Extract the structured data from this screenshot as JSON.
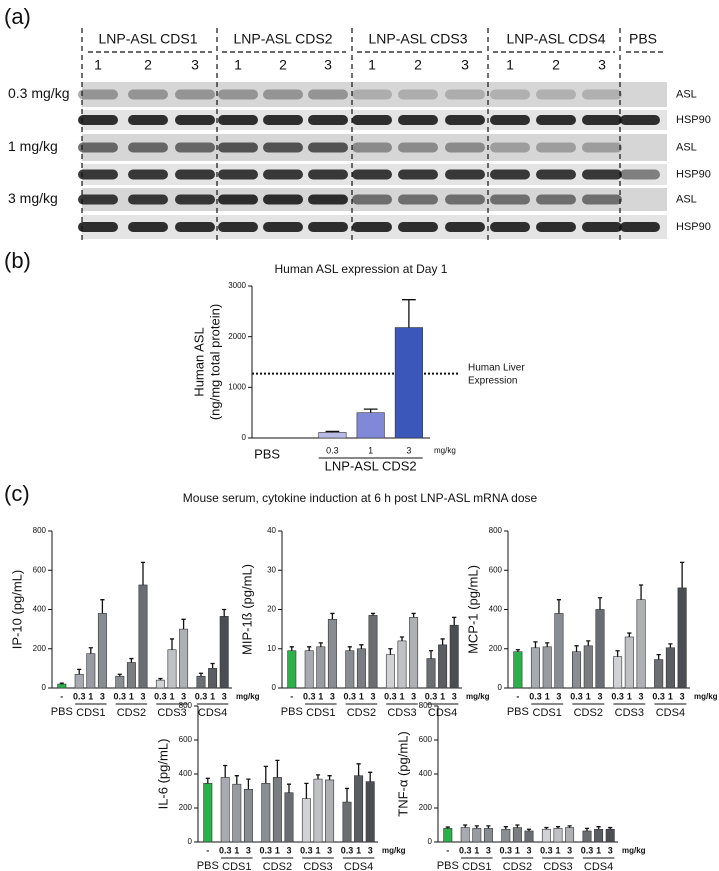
{
  "panel_labels": [
    "(a)",
    "(b)",
    "(c)"
  ],
  "blot": {
    "groups": [
      "LNP-ASL CDS1",
      "LNP-ASL CDS2",
      "LNP-ASL CDS3",
      "LNP-ASL CDS4",
      "PBS"
    ],
    "lanes": [
      "1",
      "2",
      "3"
    ],
    "doses": [
      "0.3 mg/kg",
      "1 mg/kg",
      "3 mg/kg"
    ],
    "markers": [
      "ASL",
      "HSP90"
    ]
  },
  "panel_c_title": "Mouse serum, cytokine induction at 6 h post LNP-ASL mRNA dose",
  "chart_data": [
    {
      "type": "bar",
      "title": "Human ASL expression at Day 1",
      "ylabel": [
        "Human ASL",
        "(ng/mg total protein)"
      ],
      "categories": [
        null,
        "0.3",
        "1",
        "3"
      ],
      "groups": [
        "PBS",
        "LNP-ASL CDS2"
      ],
      "unit": "mg/kg",
      "values": [
        0,
        110,
        500,
        2180
      ],
      "errors": [
        null,
        20,
        70,
        550
      ],
      "colors": [
        "#888888",
        "#b9b9e6",
        "#8088d8",
        "#3b57b9"
      ],
      "ref_line": {
        "value": 1270,
        "label": [
          "Human Liver",
          "Expression"
        ]
      },
      "ylim": [
        0,
        3000
      ],
      "yticks": [
        0,
        1000,
        2000,
        3000
      ]
    },
    {
      "type": "bar",
      "ylabel": "IP-10 (pg/mL)",
      "categories": [
        "-",
        "0.3",
        "1",
        "3",
        "0.3",
        "1",
        "3",
        "0.3",
        "1",
        "3",
        "0.3",
        "1",
        "3"
      ],
      "groups": [
        "PBS",
        "CDS1",
        "CDS2",
        "CDS3",
        "CDS4"
      ],
      "unit": "mg/kg",
      "values": [
        20,
        70,
        175,
        380,
        60,
        130,
        525,
        40,
        195,
        300,
        60,
        100,
        365
      ],
      "errors": [
        5,
        25,
        30,
        70,
        10,
        20,
        115,
        8,
        55,
        50,
        15,
        25,
        35
      ],
      "colors": [
        "#2bb04a",
        "#a7abb1",
        "#989ca2",
        "#888c93",
        "#8a8d92",
        "#7a7d82",
        "#6a6d72",
        "#d0d2d5",
        "#bfc1c4",
        "#aeb0b3",
        "#6b6e73",
        "#5a5d62",
        "#4a4d52"
      ],
      "ylim": [
        0,
        800
      ],
      "yticks": [
        0,
        200,
        400,
        600,
        800
      ]
    },
    {
      "type": "bar",
      "ylabel": "MIP-1ß (pg/mL)",
      "categories": [
        "-",
        "0.3",
        "1",
        "3",
        "0.3",
        "1",
        "3",
        "0.3",
        "1",
        "3",
        "0.3",
        "1",
        "3"
      ],
      "groups": [
        "PBS",
        "CDS1",
        "CDS2",
        "CDS3",
        "CDS4"
      ],
      "unit": "mg/kg",
      "values": [
        9.5,
        9.5,
        10.5,
        17.5,
        9.5,
        10,
        18.5,
        8.5,
        12,
        18,
        7.5,
        11,
        16
      ],
      "errors": [
        1,
        1,
        1,
        1.5,
        1,
        1,
        0.5,
        1.5,
        1,
        1,
        2,
        1.5,
        2
      ],
      "colors": [
        "#2bb04a",
        "#a7abb1",
        "#989ca2",
        "#888c93",
        "#8a8d92",
        "#7a7d82",
        "#6a6d72",
        "#d0d2d5",
        "#bfc1c4",
        "#aeb0b3",
        "#6b6e73",
        "#5a5d62",
        "#4a4d52"
      ],
      "ylim": [
        0,
        40
      ],
      "yticks": [
        0,
        10,
        20,
        30,
        40
      ]
    },
    {
      "type": "bar",
      "ylabel": "MCP-1  (pg/mL)",
      "categories": [
        "-",
        "0.3",
        "1",
        "3",
        "0.3",
        "1",
        "3",
        "0.3",
        "1",
        "3",
        "0.3",
        "1",
        "3"
      ],
      "groups": [
        "PBS",
        "CDS1",
        "CDS2",
        "CDS3",
        "CDS4"
      ],
      "unit": "mg/kg",
      "values": [
        185,
        205,
        210,
        380,
        185,
        215,
        400,
        160,
        260,
        450,
        145,
        205,
        510
      ],
      "errors": [
        10,
        30,
        20,
        70,
        30,
        25,
        60,
        30,
        20,
        75,
        25,
        20,
        130
      ],
      "colors": [
        "#2bb04a",
        "#a7abb1",
        "#989ca2",
        "#888c93",
        "#8a8d92",
        "#7a7d82",
        "#6a6d72",
        "#d0d2d5",
        "#bfc1c4",
        "#aeb0b3",
        "#6b6e73",
        "#5a5d62",
        "#4a4d52"
      ],
      "ylim": [
        0,
        800
      ],
      "yticks": [
        0,
        200,
        400,
        600,
        800
      ]
    },
    {
      "type": "bar",
      "ylabel": "IL-6 (pg/mL)",
      "categories": [
        "-",
        "0.3",
        "1",
        "3",
        "0.3",
        "1",
        "3",
        "0.3",
        "1",
        "3",
        "0.3",
        "1",
        "3"
      ],
      "groups": [
        "PBS",
        "CDS1",
        "CDS2",
        "CDS3",
        "CDS4"
      ],
      "unit": "mg/kg",
      "values": [
        345,
        380,
        340,
        310,
        345,
        380,
        290,
        255,
        370,
        365,
        235,
        390,
        355
      ],
      "errors": [
        30,
        70,
        50,
        60,
        100,
        100,
        50,
        90,
        25,
        25,
        80,
        70,
        55
      ],
      "colors": [
        "#2bb04a",
        "#a7abb1",
        "#989ca2",
        "#888c93",
        "#8a8d92",
        "#7a7d82",
        "#6a6d72",
        "#d0d2d5",
        "#bfc1c4",
        "#aeb0b3",
        "#6b6e73",
        "#5a5d62",
        "#4a4d52"
      ],
      "ylim": [
        0,
        800
      ],
      "yticks": [
        0,
        200,
        400,
        600,
        800
      ]
    },
    {
      "type": "bar",
      "ylabel": "TNF-α (pg/mL)",
      "categories": [
        "-",
        "0.3",
        "1",
        "3",
        "0.3",
        "1",
        "3",
        "0.3",
        "1",
        "3",
        "0.3",
        "1",
        "3"
      ],
      "groups": [
        "PBS",
        "CDS1",
        "CDS2",
        "CDS3",
        "CDS4"
      ],
      "unit": "mg/kg",
      "values": [
        80,
        85,
        80,
        80,
        75,
        85,
        65,
        75,
        80,
        85,
        65,
        75,
        75
      ],
      "errors": [
        8,
        15,
        15,
        15,
        15,
        15,
        10,
        10,
        10,
        10,
        15,
        15,
        10
      ],
      "colors": [
        "#2bb04a",
        "#a7abb1",
        "#989ca2",
        "#888c93",
        "#8a8d92",
        "#7a7d82",
        "#6a6d72",
        "#d0d2d5",
        "#bfc1c4",
        "#aeb0b3",
        "#6b6e73",
        "#5a5d62",
        "#4a4d52"
      ],
      "ylim": [
        0,
        800
      ],
      "yticks": [
        0,
        200,
        400,
        600,
        800
      ]
    }
  ]
}
